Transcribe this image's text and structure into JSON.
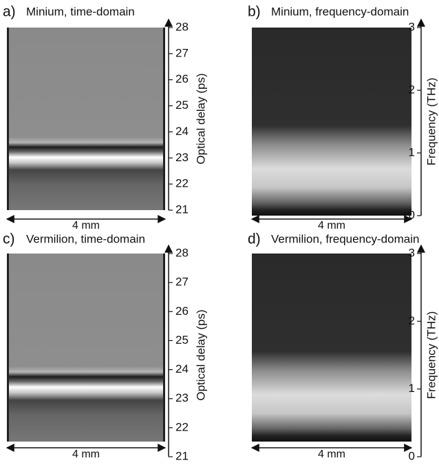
{
  "panels": [
    {
      "label": "a)",
      "title": "Minium, time-domain",
      "axis_label": "Optical delay (ps)",
      "lim": [
        21,
        28
      ],
      "ticks": [
        21,
        22,
        23,
        24,
        25,
        26,
        27,
        28
      ],
      "scale": "4 mm"
    },
    {
      "label": "b)",
      "title": "Minium, frequency-domain",
      "axis_label": "Frequency (THz)",
      "lim": [
        0,
        3
      ],
      "ticks": [
        0,
        1,
        2,
        3
      ],
      "scale": "4 mm"
    },
    {
      "label": "c)",
      "title": "Vermilion, time-domain",
      "axis_label": "Optical delay (ps)",
      "lim": [
        21,
        28
      ],
      "ticks": [
        21,
        22,
        23,
        24,
        25,
        26,
        27,
        28
      ],
      "scale": "4 mm"
    },
    {
      "label": "d)",
      "title": "Vermilion, frequency-domain",
      "axis_label": "Frequency (THz)",
      "lim": [
        0,
        3
      ],
      "ticks": [
        0,
        1,
        2,
        3
      ],
      "scale": "4 mm"
    }
  ]
}
